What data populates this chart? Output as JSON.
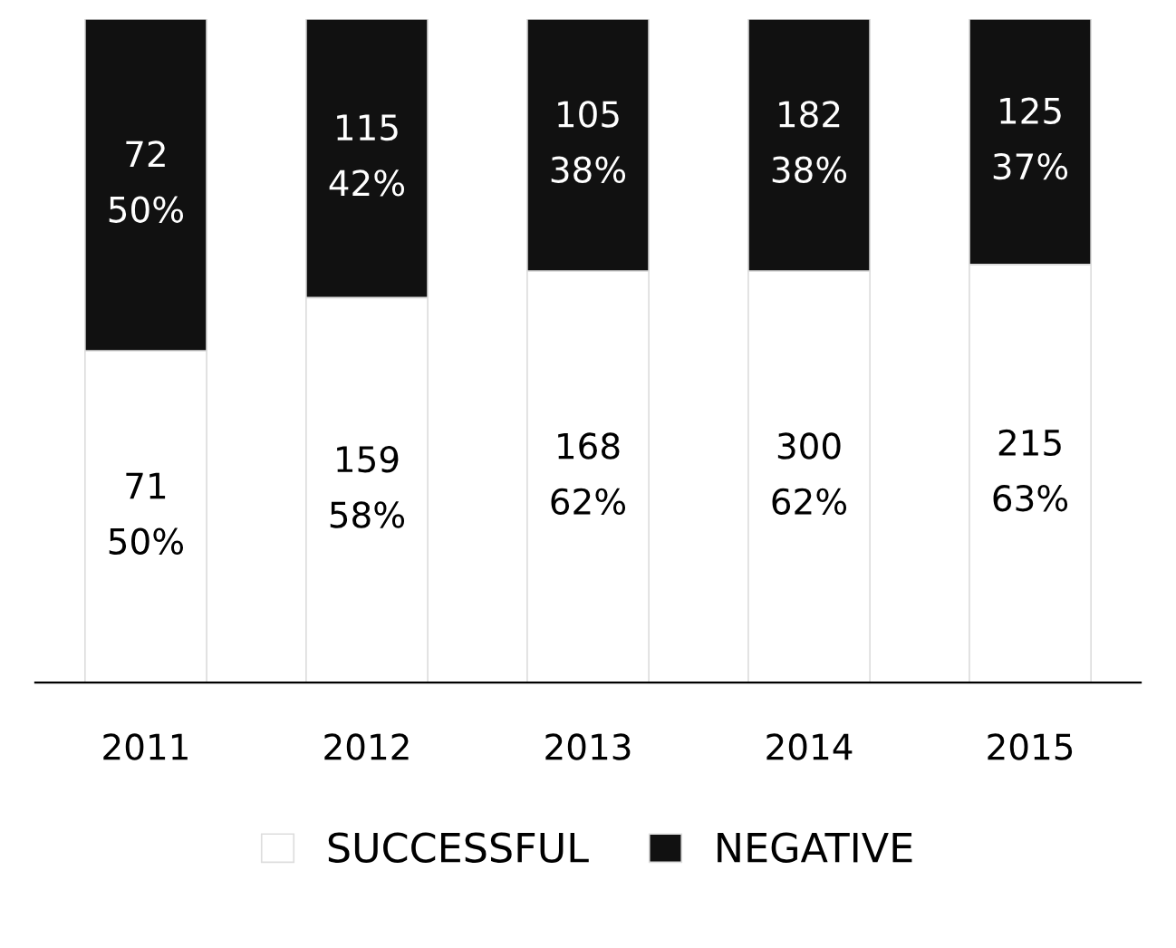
{
  "chart_data": {
    "type": "bar",
    "stacked": true,
    "categories": [
      "2011",
      "2012",
      "2013",
      "2014",
      "2015"
    ],
    "series": [
      {
        "name": "SUCCESSFUL",
        "color": "#ffffff",
        "values": [
          50,
          58,
          62,
          62,
          63
        ],
        "value_labels": [
          "71\n50%",
          "159\n58%",
          "168\n62%",
          "300\n62%",
          "215\n63%"
        ]
      },
      {
        "name": "NEGATIVE",
        "color": "#111111",
        "values": [
          50,
          42,
          38,
          38,
          37
        ],
        "value_labels": [
          "72\n50%",
          "115\n42%",
          "105\n38%",
          "182\n38%",
          "125\n37%"
        ]
      }
    ],
    "legend": "bottom",
    "grid": false
  }
}
